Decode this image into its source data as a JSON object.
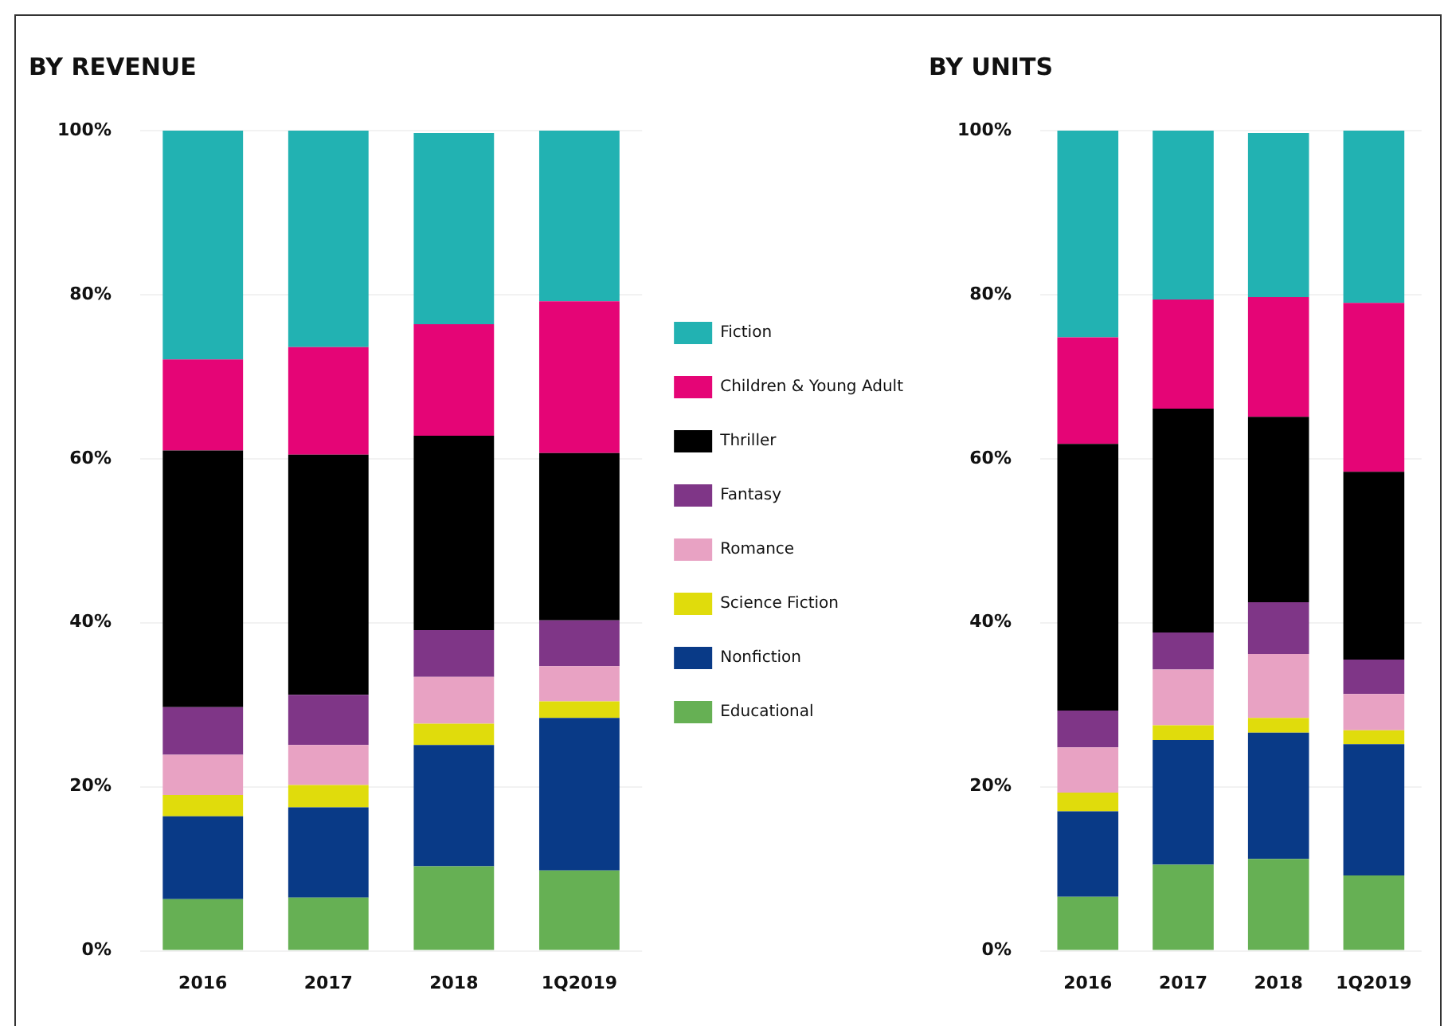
{
  "chart_data": [
    {
      "type": "bar",
      "title": "BY REVENUE",
      "categories": [
        "2016",
        "2017",
        "2018",
        "1Q2019"
      ],
      "stacked": true,
      "ylim": [
        0,
        100
      ],
      "yticks": [
        {
          "value": 0,
          "label": "0%"
        },
        {
          "value": 20,
          "label": "20%"
        },
        {
          "value": 40,
          "label": "40%"
        },
        {
          "value": 60,
          "label": "60%"
        },
        {
          "value": 80,
          "label": "80%"
        },
        {
          "value": 100,
          "label": "100%"
        }
      ],
      "grid": "y",
      "legend": "right",
      "series": [
        {
          "name": "Educational",
          "color": "#66b054",
          "values": [
            6.3,
            6.5,
            10.3,
            9.8
          ]
        },
        {
          "name": "Nonfiction",
          "color": "#093a87",
          "values": [
            10.1,
            11.0,
            14.8,
            18.6
          ]
        },
        {
          "name": "Science Fiction",
          "color": "#e0dc0c",
          "values": [
            2.6,
            2.7,
            2.6,
            2.0
          ]
        },
        {
          "name": "Romance",
          "color": "#e8a2c3",
          "values": [
            4.9,
            4.9,
            5.7,
            4.3
          ]
        },
        {
          "name": "Fantasy",
          "color": "#7f3687",
          "values": [
            5.8,
            6.1,
            5.7,
            5.6
          ]
        },
        {
          "name": "Thriller",
          "color": "#000000",
          "values": [
            31.3,
            29.3,
            23.7,
            20.4
          ]
        },
        {
          "name": "Children & Young Adult",
          "color": "#e50576",
          "values": [
            11.1,
            13.1,
            13.6,
            18.5
          ]
        },
        {
          "name": "Fiction",
          "color": "#22b2b2",
          "values": [
            27.9,
            26.4,
            23.3,
            20.8
          ]
        }
      ]
    },
    {
      "type": "bar",
      "title": "BY UNITS",
      "categories": [
        "2016",
        "2017",
        "2018",
        "1Q2019"
      ],
      "stacked": true,
      "ylim": [
        0,
        100
      ],
      "yticks": [
        {
          "value": 0,
          "label": "0%"
        },
        {
          "value": 20,
          "label": "20%"
        },
        {
          "value": 40,
          "label": "40%"
        },
        {
          "value": 60,
          "label": "60%"
        },
        {
          "value": 80,
          "label": "80%"
        },
        {
          "value": 100,
          "label": "100%"
        }
      ],
      "grid": "y",
      "series": [
        {
          "color": "#66b054",
          "values": [
            6.6,
            10.5,
            11.2,
            9.2
          ]
        },
        {
          "color": "#093a87",
          "values": [
            10.4,
            15.2,
            15.4,
            16.0
          ]
        },
        {
          "color": "#e0dc0c",
          "values": [
            2.3,
            1.8,
            1.8,
            1.7
          ]
        },
        {
          "color": "#e8a2c3",
          "values": [
            5.5,
            6.8,
            7.8,
            4.4
          ]
        },
        {
          "color": "#7f3687",
          "values": [
            4.5,
            4.5,
            6.3,
            4.2
          ]
        },
        {
          "color": "#000000",
          "values": [
            32.5,
            27.3,
            22.6,
            22.9
          ]
        },
        {
          "color": "#e50576",
          "values": [
            13.0,
            13.3,
            14.6,
            20.6
          ]
        },
        {
          "color": "#22b2b2",
          "values": [
            25.2,
            20.6,
            20.0,
            21.0
          ]
        }
      ]
    }
  ]
}
